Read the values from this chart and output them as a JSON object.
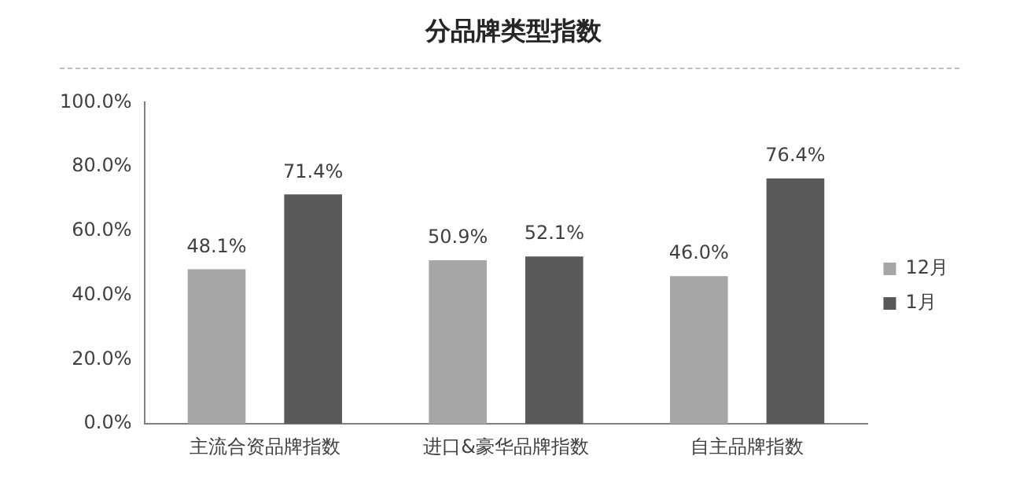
{
  "chart_data": {
    "type": "bar",
    "title": "分品牌类型指数",
    "categories": [
      "主流合资品牌指数",
      "进口&豪华品牌指数",
      "自主品牌指数"
    ],
    "series": [
      {
        "name": "12月",
        "color": "#a6a6a6",
        "values": [
          48.1,
          50.9,
          46.0
        ],
        "value_labels": [
          "48.1%",
          "50.9%",
          "46.0%"
        ]
      },
      {
        "name": "1月",
        "color": "#595959",
        "values": [
          71.4,
          52.1,
          76.4
        ],
        "value_labels": [
          "71.4%",
          "52.1%",
          "76.4%"
        ]
      }
    ],
    "ylim": [
      0,
      100
    ],
    "yticks": [
      {
        "value": 0,
        "label": "0.0%"
      },
      {
        "value": 20,
        "label": "20.0%"
      },
      {
        "value": 40,
        "label": "40.0%"
      },
      {
        "value": 60,
        "label": "60.0%"
      },
      {
        "value": 80,
        "label": "80.0%"
      },
      {
        "value": 100,
        "label": "100.0%"
      }
    ],
    "grid": false,
    "legend": "right"
  }
}
